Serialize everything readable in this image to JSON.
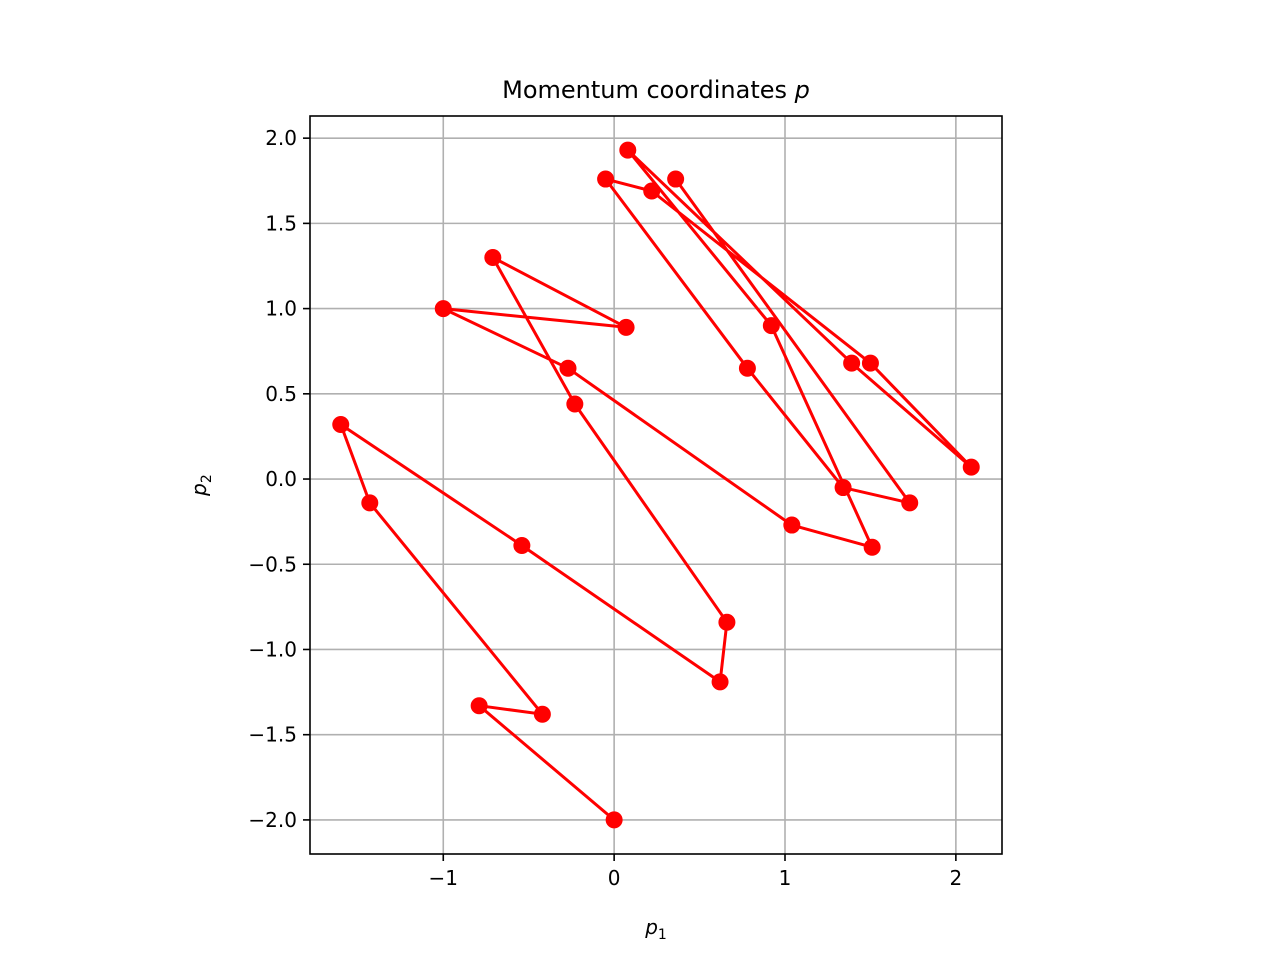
{
  "chart_data": {
    "type": "line",
    "title": "Momentum coordinates",
    "title_symbol": "p",
    "xlabel_symbol": "p",
    "xlabel_sub": "1",
    "ylabel_symbol": "p",
    "ylabel_sub": "2",
    "xlim": [
      -1.78,
      2.27
    ],
    "ylim": [
      -2.2,
      2.13
    ],
    "xticks": [
      -1,
      0,
      1,
      2
    ],
    "xtick_labels": [
      "−1",
      "0",
      "1",
      "2"
    ],
    "yticks": [
      -2.0,
      -1.5,
      -1.0,
      -0.5,
      0.0,
      0.5,
      1.0,
      1.5,
      2.0
    ],
    "ytick_labels": [
      "−2.0",
      "−1.5",
      "−1.0",
      "−0.5",
      "0.0",
      "0.5",
      "1.0",
      "1.5",
      "2.0"
    ],
    "grid": true,
    "line_color": "#ff0000",
    "marker": "circle",
    "points": [
      {
        "x": 0.0,
        "y": -2.0
      },
      {
        "x": -0.79,
        "y": -1.33
      },
      {
        "x": -0.42,
        "y": -1.38
      },
      {
        "x": -1.43,
        "y": -0.14
      },
      {
        "x": -1.6,
        "y": 0.32
      },
      {
        "x": -0.54,
        "y": -0.39
      },
      {
        "x": 0.62,
        "y": -1.19
      },
      {
        "x": 0.66,
        "y": -0.84
      },
      {
        "x": -0.23,
        "y": 0.44
      },
      {
        "x": -0.71,
        "y": 1.3
      },
      {
        "x": 0.07,
        "y": 0.89
      },
      {
        "x": -1.0,
        "y": 1.0
      },
      {
        "x": -0.27,
        "y": 0.65
      },
      {
        "x": 1.04,
        "y": -0.27
      },
      {
        "x": 1.51,
        "y": -0.4
      },
      {
        "x": 0.92,
        "y": 0.9
      },
      {
        "x": 0.08,
        "y": 1.93
      },
      {
        "x": 1.39,
        "y": 0.68
      },
      {
        "x": 2.09,
        "y": 0.07
      },
      {
        "x": 1.5,
        "y": 0.68
      },
      {
        "x": 0.22,
        "y": 1.69
      },
      {
        "x": -0.05,
        "y": 1.76
      },
      {
        "x": 0.78,
        "y": 0.65
      },
      {
        "x": 1.34,
        "y": -0.05
      },
      {
        "x": 1.73,
        "y": -0.14
      },
      {
        "x": 0.36,
        "y": 1.76
      }
    ]
  }
}
